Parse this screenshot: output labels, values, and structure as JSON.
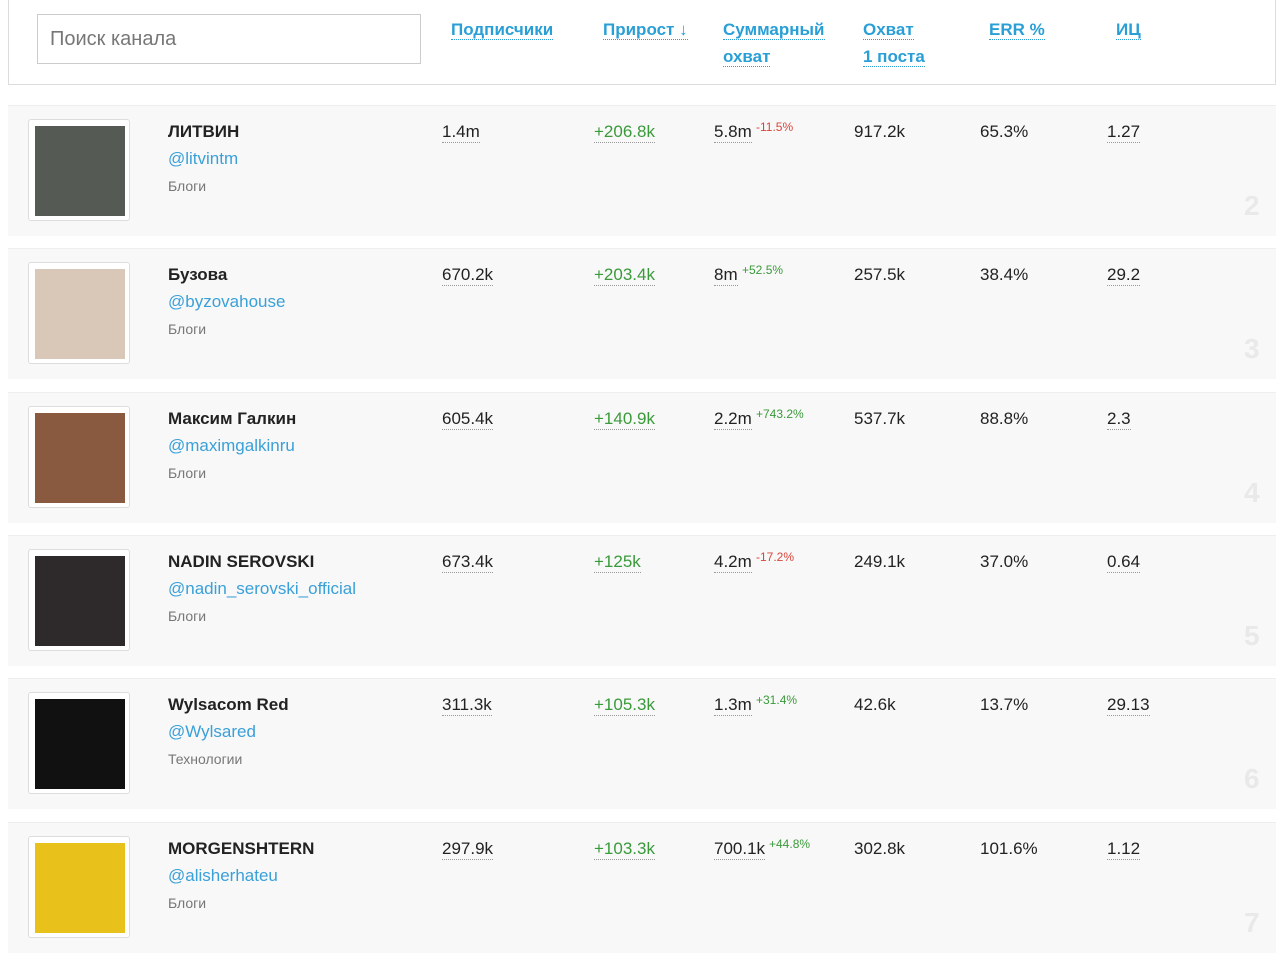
{
  "search": {
    "placeholder": "Поиск канала"
  },
  "header": {
    "columns": [
      {
        "lines": [
          "Подписчики"
        ]
      },
      {
        "lines": [
          "Прирост ↓"
        ]
      },
      {
        "lines": [
          "Суммарный",
          "охват"
        ]
      },
      {
        "lines": [
          "Охват",
          "1 поста"
        ]
      },
      {
        "lines": [
          "ERR %"
        ]
      },
      {
        "lines": [
          "ИЦ"
        ]
      }
    ]
  },
  "rows": [
    {
      "name": "ЛИТВИН",
      "handle": "@litvintm",
      "category": "Блоги",
      "subscribers": "1.4m",
      "growth": "+206.8k",
      "reach": "5.8m",
      "reach_change": "-11.5%",
      "post_reach": "917.2k",
      "err": "65.3%",
      "ic": "1.27",
      "rank": "2"
    },
    {
      "name": "Бузова",
      "handle": "@byzovahouse",
      "category": "Блоги",
      "subscribers": "670.2k",
      "growth": "+203.4k",
      "reach": "8m",
      "reach_change": "+52.5%",
      "post_reach": "257.5k",
      "err": "38.4%",
      "ic": "29.2",
      "rank": "3"
    },
    {
      "name": "Максим Галкин",
      "handle": "@maximgalkinru",
      "category": "Блоги",
      "subscribers": "605.4k",
      "growth": "+140.9k",
      "reach": "2.2m",
      "reach_change": "+743.2%",
      "post_reach": "537.7k",
      "err": "88.8%",
      "ic": "2.3",
      "rank": "4"
    },
    {
      "name": "NADIN SEROVSKI",
      "handle": "@nadin_serovski_official",
      "category": "Блоги",
      "subscribers": "673.4k",
      "growth": "+125k",
      "reach": "4.2m",
      "reach_change": "-17.2%",
      "post_reach": "249.1k",
      "err": "37.0%",
      "ic": "0.64",
      "rank": "5"
    },
    {
      "name": "Wylsacom Red",
      "handle": "@Wylsared",
      "category": "Технологии",
      "subscribers": "311.3k",
      "growth": "+105.3k",
      "reach": "1.3m",
      "reach_change": "+31.4%",
      "post_reach": "42.6k",
      "err": "13.7%",
      "ic": "29.13",
      "rank": "6"
    },
    {
      "name": "MORGENSHTERN",
      "handle": "@alisherhateu",
      "category": "Блоги",
      "subscribers": "297.9k",
      "growth": "+103.3k",
      "reach": "700.1k",
      "reach_change": "+44.8%",
      "post_reach": "302.8k",
      "err": "101.6%",
      "ic": "1.12",
      "rank": "7"
    }
  ]
}
